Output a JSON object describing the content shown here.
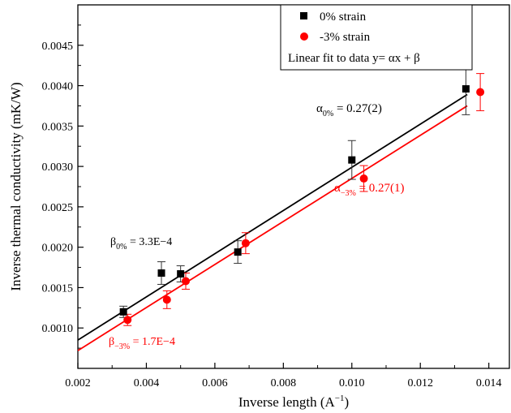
{
  "chart_data": {
    "type": "scatter",
    "title": "",
    "xlabel": "Inverse length (A",
    "xlabel_sup": "−1",
    "xlabel_end": ")",
    "ylabel": "Inverse thermal conductivity (mK/W)",
    "xlim": [
      0.002,
      0.0146
    ],
    "ylim": [
      0.0005,
      0.005
    ],
    "x_ticks": [
      "0.002",
      "0.004",
      "0.006",
      "0.008",
      "0.010",
      "0.012",
      "0.014"
    ],
    "y_ticks": [
      "0.0010",
      "0.0015",
      "0.0020",
      "0.0025",
      "0.0030",
      "0.0035",
      "0.0040",
      "0.0045"
    ],
    "grid": false,
    "legend_position": "top-right",
    "legend_fit_text": "Linear fit to data y= αx + β",
    "series": [
      {
        "name": "0% strain",
        "color": "#000000",
        "marker": "square",
        "x": [
          0.00333,
          0.00444,
          0.005,
          0.00667,
          0.01,
          0.01333
        ],
        "y": [
          0.0012,
          0.00168,
          0.00167,
          0.00194,
          0.00308,
          0.00396
        ],
        "err": [
          7e-05,
          0.00014,
          0.0001,
          0.00014,
          0.00024,
          0.00032
        ],
        "fit": {
          "x": [
            0.002,
            0.01337
          ],
          "y": [
            0.00085,
            0.00389
          ]
        }
      },
      {
        "name": "-3% strain",
        "color": "#ff0000",
        "marker": "circle",
        "x": [
          0.00345,
          0.0046,
          0.00515,
          0.0069,
          0.01035,
          0.01375
        ],
        "y": [
          0.0011,
          0.00135,
          0.00158,
          0.00205,
          0.00285,
          0.00392
        ],
        "err": [
          7e-05,
          0.00011,
          0.0001,
          0.00013,
          0.00016,
          0.00023
        ],
        "fit": {
          "x": [
            0.002,
            0.01337
          ],
          "y": [
            0.00072,
            0.00375
          ]
        }
      }
    ],
    "annotations": [
      {
        "base": "α",
        "sub": "0%",
        "rest": " = 0.27(2)",
        "color": "#000000"
      },
      {
        "base": "α",
        "sub": "−3%",
        "rest": " = 0.27(1)",
        "color": "#ff0000"
      },
      {
        "base": "β",
        "sub": "0%",
        "rest": " = 3.3E−4",
        "color": "#000000"
      },
      {
        "base": "β",
        "sub": "−3%",
        "rest": " = 1.7E−4",
        "color": "#ff0000"
      }
    ]
  }
}
